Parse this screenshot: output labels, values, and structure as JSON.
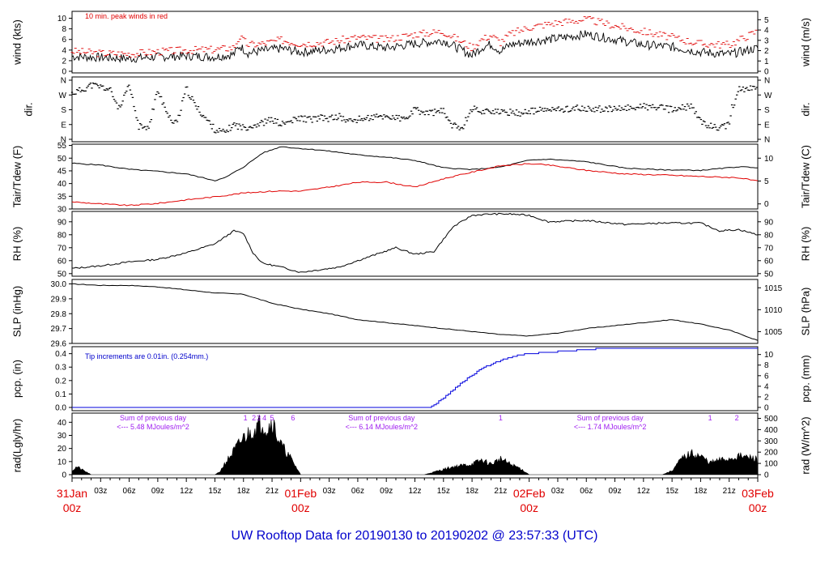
{
  "title": "UW Rooftop Data for 20190130  to  20190202 @ 23:57:33  (UTC)",
  "colors": {
    "frame": "#000000",
    "peak": "#e00000",
    "dew": "#e00000",
    "precip": "#0000dd",
    "note_blue": "#0000cc",
    "note_purple": "#a020f0",
    "title": "#0000cc"
  },
  "x_axis": {
    "hour_ticks": [
      "03z",
      "06z",
      "09z",
      "12z",
      "15z",
      "18z",
      "21z",
      "03z",
      "06z",
      "09z",
      "12z",
      "15z",
      "18z",
      "21z",
      "03z",
      "06z",
      "09z",
      "12z",
      "15z",
      "18z",
      "21z"
    ],
    "hour_values": [
      3,
      6,
      9,
      12,
      15,
      18,
      21,
      27,
      30,
      33,
      36,
      39,
      42,
      45,
      51,
      54,
      57,
      60,
      63,
      66,
      69
    ],
    "day_labels": [
      {
        "day": "31Jan",
        "hour": "00z",
        "at": 0
      },
      {
        "day": "01Feb",
        "hour": "00z",
        "at": 24
      },
      {
        "day": "02Feb",
        "hour": "00z",
        "at": 48
      },
      {
        "day": "03Feb",
        "hour": "00z",
        "at": 72
      }
    ]
  },
  "chart_data": [
    {
      "type": "line",
      "name": "wind",
      "ylabel_left": "wind (kts)",
      "ylabel_right": "wind (m/s)",
      "yticks_left": [
        0,
        2,
        4,
        6,
        8,
        10
      ],
      "ylim": [
        0,
        11
      ],
      "yticks_right": [
        0,
        1,
        2,
        3,
        4,
        5
      ],
      "right_scale": 0.514,
      "annotation": "10 min. peak winds in red",
      "x_hours": [
        0,
        3,
        6,
        9,
        12,
        15,
        17,
        17.6,
        18.5,
        20,
        22,
        24,
        27,
        30,
        33,
        36,
        39,
        42,
        43,
        44,
        45,
        46,
        48,
        51,
        54,
        57,
        60,
        63,
        66,
        69,
        72
      ],
      "values": [
        2.8,
        2.6,
        2.4,
        2.7,
        2.9,
        2.7,
        3.2,
        4.8,
        3.4,
        3.9,
        4.3,
        3.6,
        4.1,
        5.0,
        4.4,
        5.2,
        5.8,
        3.0,
        4.5,
        5.1,
        3.8,
        5.0,
        5.6,
        6.2,
        7.0,
        6.0,
        5.0,
        4.6,
        3.6,
        3.2,
        4.4
      ],
      "peaks": [
        3.8,
        3.4,
        3.3,
        3.7,
        4.0,
        4.1,
        4.5,
        6.5,
        5.0,
        5.2,
        5.9,
        5.2,
        5.5,
        6.4,
        6.0,
        7.0,
        7.5,
        4.5,
        6.0,
        6.8,
        5.5,
        7.0,
        8.3,
        9.2,
        9.8,
        8.6,
        7.5,
        6.4,
        5.2,
        5.0,
        7.6
      ]
    },
    {
      "type": "scatter",
      "name": "direction",
      "ylabel_left": "dir.",
      "ylabel_right": "dir.",
      "yticks": [
        "N",
        "E",
        "S",
        "W",
        "N"
      ],
      "ylim": [
        0,
        360
      ],
      "x_hours": [
        0,
        1,
        2,
        3,
        4,
        5,
        6,
        7,
        8,
        9,
        10,
        11,
        12,
        13,
        14,
        15,
        16,
        17,
        18,
        19,
        20,
        21,
        22,
        23,
        24,
        25,
        26,
        27,
        28,
        29,
        30,
        31,
        32,
        33,
        34,
        35,
        36,
        37,
        38,
        39,
        40,
        41,
        42,
        43,
        44,
        45,
        46,
        47,
        48,
        49,
        50,
        51,
        52,
        53,
        54,
        55,
        56,
        57,
        58,
        59,
        60,
        61,
        62,
        63,
        64,
        65,
        66,
        67,
        68,
        69,
        70,
        71,
        72
      ],
      "values": [
        280,
        300,
        330,
        320,
        300,
        180,
        330,
        80,
        60,
        300,
        150,
        90,
        310,
        200,
        130,
        60,
        40,
        90,
        70,
        85,
        100,
        120,
        90,
        110,
        130,
        120,
        130,
        125,
        140,
        110,
        120,
        130,
        135,
        140,
        130,
        120,
        180,
        160,
        165,
        170,
        80,
        75,
        190,
        170,
        175,
        160,
        165,
        160,
        170,
        175,
        180,
        180,
        185,
        190,
        180,
        185,
        185,
        180,
        190,
        195,
        200,
        195,
        190,
        180,
        190,
        200,
        110,
        80,
        70,
        90,
        300,
        310,
        320
      ]
    },
    {
      "type": "line",
      "name": "temperature",
      "ylabel_left": "Tair/Tdew (F)",
      "ylabel_right": "Tair/Tdew (C)",
      "yticks_left": [
        30,
        35,
        40,
        45,
        50,
        55
      ],
      "ylim": [
        30,
        55.5
      ],
      "yticks_right": [
        0,
        5,
        10
      ],
      "series": [
        {
          "name": "Tair",
          "x_hours": [
            0,
            3,
            6,
            9,
            12,
            15,
            16,
            18,
            20,
            22,
            23,
            24,
            26,
            28,
            30,
            33,
            36,
            39,
            42,
            45,
            48,
            50,
            54,
            58,
            62,
            66,
            70,
            72
          ],
          "values": [
            48,
            47.3,
            45.6,
            44.8,
            43.8,
            41.2,
            42.2,
            46.5,
            52,
            54.6,
            54.1,
            53.8,
            53.2,
            52.3,
            51.3,
            50.4,
            49.1,
            46.2,
            45.5,
            46.5,
            49.2,
            49.6,
            48.6,
            46.1,
            45.4,
            45.2,
            46.6,
            46.3
          ]
        },
        {
          "name": "Tdew",
          "x_hours": [
            0,
            3,
            6,
            9,
            12,
            15,
            18,
            20,
            22,
            24,
            27,
            30,
            33,
            36,
            39,
            42,
            45,
            48,
            50,
            54,
            58,
            62,
            66,
            70,
            72
          ],
          "values": [
            32.8,
            32,
            31.4,
            32.2,
            33.6,
            34.8,
            36.3,
            36.8,
            37.1,
            37.0,
            38.6,
            40.5,
            40.6,
            38.6,
            41.9,
            44.5,
            47,
            47.8,
            47.3,
            45.2,
            43.8,
            43.4,
            42.8,
            42.3,
            40.9
          ]
        }
      ]
    },
    {
      "type": "line",
      "name": "rh",
      "ylabel_left": "RH (%)",
      "ylabel_right": "RH (%)",
      "yticks": [
        50,
        60,
        70,
        80,
        90
      ],
      "ylim": [
        48,
        98
      ],
      "x_hours": [
        0,
        3,
        6,
        9,
        12,
        15,
        17,
        18,
        19,
        20,
        22,
        24,
        26,
        28,
        30,
        32,
        34,
        36,
        38,
        40,
        42,
        44,
        46,
        48,
        50,
        54,
        58,
        62,
        66,
        68,
        70,
        72
      ],
      "values": [
        54,
        56,
        59,
        61,
        66,
        73,
        83,
        81,
        66,
        58,
        55,
        51,
        53,
        55,
        60,
        65,
        70,
        65,
        67,
        86,
        95,
        96,
        96,
        95,
        90,
        91,
        88,
        89,
        89,
        83,
        84,
        80
      ]
    },
    {
      "type": "line",
      "name": "slp",
      "ylabel_left": "SLP (inHg)",
      "ylabel_right": "SLP (hPa)",
      "yticks_left": [
        29.6,
        29.7,
        29.8,
        29.9,
        30.0
      ],
      "ylim": [
        29.6,
        30.03
      ],
      "yticks_right": [
        1005,
        1010,
        1015
      ],
      "right_ylim": [
        1002.3,
        1016.9
      ],
      "x_hours": [
        0,
        3,
        6,
        9,
        12,
        15,
        18,
        21,
        24,
        27,
        30,
        33,
        36,
        39,
        42,
        45,
        48,
        51,
        54,
        57,
        60,
        63,
        66,
        69,
        72
      ],
      "values": [
        30.0,
        29.99,
        29.99,
        29.98,
        29.96,
        29.94,
        29.93,
        29.87,
        29.83,
        29.8,
        29.76,
        29.74,
        29.72,
        29.7,
        29.68,
        29.66,
        29.65,
        29.67,
        29.7,
        29.72,
        29.74,
        29.76,
        29.73,
        29.69,
        29.62
      ]
    },
    {
      "type": "area",
      "name": "precip",
      "ylabel_left": "pcp. (in)",
      "ylabel_right": "pcp. (mm)",
      "yticks_left": [
        0.0,
        0.1,
        0.2,
        0.3,
        0.4
      ],
      "ylim": [
        0,
        0.44
      ],
      "yticks_right": [
        0,
        2,
        4,
        6,
        8,
        10
      ],
      "annotation": "Tip increments are 0.01in. (0.254mm.)",
      "x_hours": [
        0,
        37.5,
        38,
        39,
        40,
        41,
        42,
        43,
        44,
        45,
        46,
        47,
        48,
        50,
        52,
        54,
        56,
        60,
        72
      ],
      "values": [
        0,
        0,
        0.02,
        0.07,
        0.13,
        0.19,
        0.24,
        0.29,
        0.32,
        0.35,
        0.37,
        0.39,
        0.4,
        0.41,
        0.42,
        0.43,
        0.44,
        0.44,
        0.44
      ]
    },
    {
      "type": "area",
      "name": "radiation",
      "ylabel_left": "rad(Lgly/hr)",
      "ylabel_right": "rad (W/m^2)",
      "yticks_left": [
        0,
        10,
        20,
        30,
        40
      ],
      "ylim": [
        0,
        47
      ],
      "yticks_right": [
        0,
        100,
        200,
        300,
        400,
        500
      ],
      "x_hours": [
        0,
        0.5,
        1,
        1.5,
        2,
        15,
        15.5,
        16,
        17,
        18,
        19,
        20,
        20.5,
        21,
        21.5,
        22,
        23,
        24,
        37,
        38,
        40,
        42,
        43,
        44,
        45,
        46,
        47,
        48,
        62,
        63,
        64,
        65,
        66,
        67,
        68,
        69,
        70,
        71,
        72
      ],
      "values": [
        3,
        6,
        4,
        2,
        0,
        0,
        2,
        8,
        18,
        28,
        34,
        40,
        34,
        42,
        30,
        22,
        12,
        0,
        0,
        2,
        6,
        8,
        11,
        8,
        12,
        8,
        5,
        0,
        0,
        3,
        12,
        16,
        14,
        9,
        11,
        12,
        14,
        13,
        12
      ],
      "markers": [
        {
          "label": "1",
          "hour": 18.2
        },
        {
          "label": "2",
          "hour": 19.1
        },
        {
          "label": "3",
          "hour": 19.6
        },
        {
          "label": "4",
          "hour": 20.2
        },
        {
          "label": "5",
          "hour": 21.0
        },
        {
          "label": "6",
          "hour": 23.2
        },
        {
          "label": "1",
          "hour": 45.0
        },
        {
          "label": "1",
          "hour": 67.0
        },
        {
          "label": "2",
          "hour": 69.8
        }
      ],
      "notes": [
        {
          "line1": "Sum of previous day",
          "line2": "<--- 5.48 MJoules/m^2",
          "hour": 8.5
        },
        {
          "line1": "Sum of previous day",
          "line2": "<--- 6.14 MJoules/m^2",
          "hour": 32.5
        },
        {
          "line1": "Sum of previous day",
          "line2": "<--- 1.74 MJoules/m^2",
          "hour": 56.5
        }
      ]
    }
  ]
}
